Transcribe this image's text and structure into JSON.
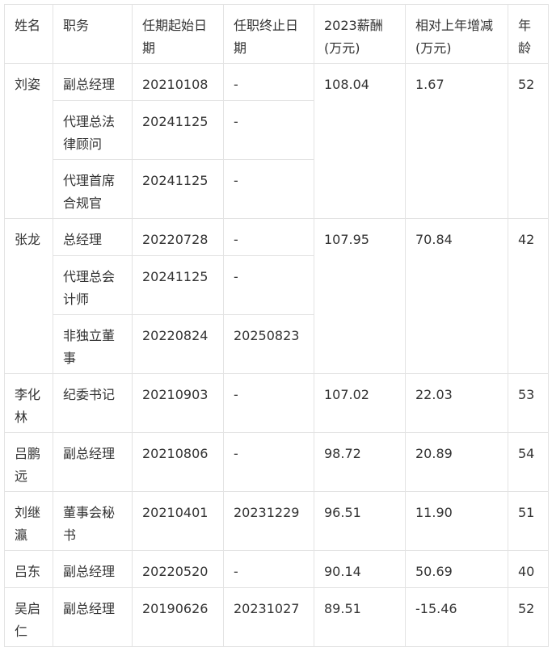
{
  "table": {
    "headers": [
      "姓名",
      "职务",
      "任期起始日期",
      "任职终止日期",
      "2023薪酬(万元)",
      "相对上年增减(万元)",
      "年龄"
    ],
    "people": [
      {
        "name": "刘姿",
        "salary": "108.04",
        "change": "1.67",
        "age": "52",
        "roles": [
          {
            "title": "副总经理",
            "start": "20210108",
            "end": "-"
          },
          {
            "title": "代理总法律顾问",
            "start": "20241125",
            "end": "-"
          },
          {
            "title": "代理首席合规官",
            "start": "20241125",
            "end": "-"
          }
        ]
      },
      {
        "name": "张龙",
        "salary": "107.95",
        "change": "70.84",
        "age": "42",
        "roles": [
          {
            "title": "总经理",
            "start": "20220728",
            "end": "-"
          },
          {
            "title": "代理总会计师",
            "start": "20241125",
            "end": "-"
          },
          {
            "title": "非独立董事",
            "start": "20220824",
            "end": "20250823"
          }
        ]
      },
      {
        "name": "李化林",
        "salary": "107.02",
        "change": "22.03",
        "age": "53",
        "roles": [
          {
            "title": "纪委书记",
            "start": "20210903",
            "end": "-"
          }
        ]
      },
      {
        "name": "吕鹏远",
        "salary": "98.72",
        "change": "20.89",
        "age": "54",
        "roles": [
          {
            "title": "副总经理",
            "start": "20210806",
            "end": "-"
          }
        ]
      },
      {
        "name": "刘继瀛",
        "salary": "96.51",
        "change": "11.90",
        "age": "51",
        "roles": [
          {
            "title": "董事会秘书",
            "start": "20210401",
            "end": "20231229"
          }
        ]
      },
      {
        "name": "吕东",
        "salary": "90.14",
        "change": "50.69",
        "age": "40",
        "roles": [
          {
            "title": "副总经理",
            "start": "20220520",
            "end": "-"
          }
        ]
      },
      {
        "name": "吴启仁",
        "salary": "89.51",
        "change": "-15.46",
        "age": "52",
        "roles": [
          {
            "title": "副总经理",
            "start": "20190626",
            "end": "20231027"
          }
        ]
      }
    ]
  }
}
